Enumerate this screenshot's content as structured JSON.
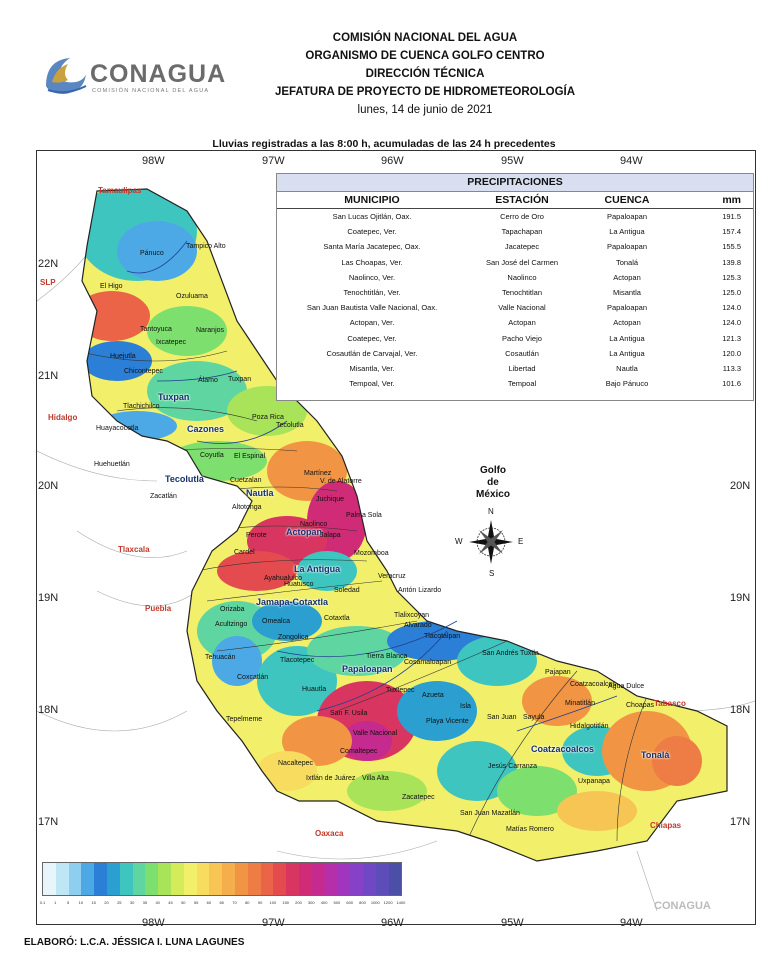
{
  "logo": {
    "name": "CONAGUA",
    "subtitle": "COMISIÓN NACIONAL DEL AGUA"
  },
  "header": {
    "line1": "COMISIÓN NACIONAL DEL AGUA",
    "line2": "ORGANISMO DE CUENCA GOLFO CENTRO",
    "line3": "DIRECCIÓN TÉCNICA",
    "line4": "JEFATURA DE PROYECTO DE HIDROMETEOROLOGÍA",
    "date": "lunes, 14 de junio de 2021"
  },
  "caption": "Lluvias registradas a las 8:00 h, acumuladas de las 24 h precedentes",
  "axes": {
    "lon": [
      "98W",
      "97W",
      "96W",
      "95W",
      "94W"
    ],
    "lat": [
      "22N",
      "21N",
      "20N",
      "19N",
      "18N",
      "17N"
    ]
  },
  "table": {
    "title": "PRECIPITACIONES",
    "headers": {
      "municipio": "MUNICIPIO",
      "estacion": "ESTACIÓN",
      "cuenca": "CUENCA",
      "mm": "mm"
    },
    "rows": [
      {
        "municipio": "San Lucas Ojitlán, Oax.",
        "estacion": "Cerro de Oro",
        "cuenca": "Papaloapan",
        "mm": "191.5"
      },
      {
        "municipio": "Coatepec, Ver.",
        "estacion": "Tapachapan",
        "cuenca": "La Antigua",
        "mm": "157.4"
      },
      {
        "municipio": "Santa María Jacatepec, Oax.",
        "estacion": "Jacatepec",
        "cuenca": "Papaloapan",
        "mm": "155.5"
      },
      {
        "municipio": "Las Choapas, Ver.",
        "estacion": "San José del Carmen",
        "cuenca": "Tonalá",
        "mm": "139.8"
      },
      {
        "municipio": "Naolinco, Ver.",
        "estacion": "Naolinco",
        "cuenca": "Actopan",
        "mm": "125.3"
      },
      {
        "municipio": "Tenochtitlán, Ver.",
        "estacion": "Tenochtitlan",
        "cuenca": "Misantla",
        "mm": "125.0"
      },
      {
        "municipio": "San Juan Bautista Valle Nacional, Oax.",
        "estacion": "Valle Nacional",
        "cuenca": "Papaloapan",
        "mm": "124.0"
      },
      {
        "municipio": "Actopan, Ver.",
        "estacion": "Actopan",
        "cuenca": "Actopan",
        "mm": "124.0"
      },
      {
        "municipio": "Coatepec, Ver.",
        "estacion": "Pacho Viejo",
        "cuenca": "La Antigua",
        "mm": "121.3"
      },
      {
        "municipio": "Cosautlán de Carvajal, Ver.",
        "estacion": "Cosautlán",
        "cuenca": "La Antigua",
        "mm": "120.0"
      },
      {
        "municipio": "Misantla, Ver.",
        "estacion": "Libertad",
        "cuenca": "Nautla",
        "mm": "113.3"
      },
      {
        "municipio": "Tempoal, Ver.",
        "estacion": "Tempoal",
        "cuenca": "Bajo Pánuco",
        "mm": "101.6"
      }
    ]
  },
  "states": [
    "Tamaulipas",
    "SLP",
    "Hidalgo",
    "Tlaxcala",
    "Puebla",
    "Oaxaca",
    "Chiapas",
    "Tabasco"
  ],
  "basins": [
    "Tuxpan",
    "Cazones",
    "Tecolutla",
    "Nautla",
    "Actopan",
    "La Antigua",
    "Jamapa-Cotaxtla",
    "Papaloapan",
    "Coatzacoalcos",
    "Tonalá"
  ],
  "gulf": {
    "l1": "Golfo",
    "l2": "de",
    "l3": "México"
  },
  "compass": {
    "n": "N",
    "s": "S",
    "e": "E",
    "w": "W"
  },
  "places": [
    "Pánuco",
    "Tampico Alto",
    "El Higo",
    "Ozuluama",
    "Tantoyuca",
    "Naranjos",
    "Huejutla",
    "Ixcatepec",
    "Chicontepec",
    "Álamo",
    "Tuxpan",
    "Tlachichilco",
    "Poza Rica",
    "Huayacocotla",
    "Tecolutla",
    "Coyutla",
    "El Espinal",
    "Huehuetlán",
    "Zacatlán",
    "Cuetzalan",
    "Martínez",
    "V. de Alatorre",
    "Juchique",
    "Altotonga",
    "Naolinco",
    "Palma Sola",
    "Perote",
    "Jalapa",
    "Mozomboa",
    "Cardel",
    "Ayahualulco",
    "Huatusco",
    "Veracruz",
    "Soledad",
    "Antón Lizardo",
    "Orizaba",
    "Acultzingo",
    "Omealca",
    "Cotaxtla",
    "Tlalixcoyan",
    "Alvarado",
    "Tlacotalpan",
    "Zongolica",
    "Tierra Blanca",
    "Cosamaloapan",
    "San Andrés Tuxtla",
    "Tehuacán",
    "Tlacotepec",
    "Coxcatlán",
    "Huautla",
    "Tuxtepec",
    "Azueta",
    "Isla",
    "Pajapan",
    "Coatzacoalcos",
    "Agua Dulce",
    "Minatitlán",
    "Choapas",
    "Tepelmeme",
    "San F. Usila",
    "Valle Nacional",
    "Playa Vicente",
    "San Juan",
    "Sayula",
    "Hidalgotitlán",
    "Jesús Carranza",
    "Comaltepec",
    "Nacaltepec",
    "Ixtlán de Juárez",
    "Villa Alta",
    "Zacatepec",
    "Uxpanapa",
    "San Juan Mazatlán",
    "Matías Romero"
  ],
  "legend": {
    "values": [
      "0.1",
      "1",
      "5",
      "10",
      "15",
      "20",
      "25",
      "30",
      "35",
      "40",
      "45",
      "50",
      "55",
      "60",
      "65",
      "70",
      "80",
      "90",
      "100",
      "150",
      "200",
      "300",
      "400",
      "500",
      "600",
      "800",
      "1000",
      "1200",
      "1400"
    ],
    "colors": [
      "#e8f6fb",
      "#bfe6f5",
      "#8ecff0",
      "#4da9e6",
      "#2b7fd6",
      "#2a9fd0",
      "#3fc5c0",
      "#5fd6a2",
      "#7ddf6e",
      "#a9e35a",
      "#d4ec5a",
      "#f2f06a",
      "#f7dc5f",
      "#f6c553",
      "#f4ae4b",
      "#f19545",
      "#ee7c45",
      "#ec6448",
      "#e44b4f",
      "#d83660",
      "#cf2b76",
      "#c52a8e",
      "#b52eaa",
      "#9f36bd",
      "#8740c8",
      "#7048c6",
      "#5c4db8",
      "#4c4fa7"
    ]
  },
  "credit": "ELABORÓ: L.C.A. JÉSSICA I. LUNA LAGUNES",
  "watermark": "CONAGUA"
}
